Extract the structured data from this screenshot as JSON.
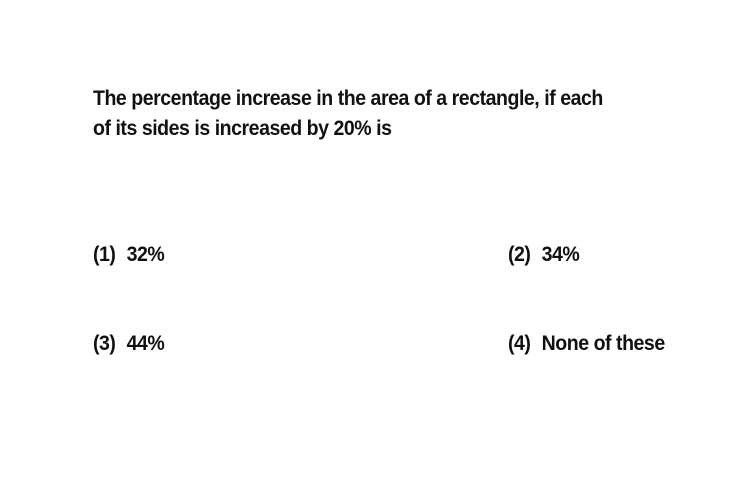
{
  "question": {
    "line1": "The percentage increase in the area of a rectangle, if each",
    "line2": "of its sides is increased by 20% is"
  },
  "options": [
    {
      "number": "(1)",
      "text": "32%"
    },
    {
      "number": "(2)",
      "text": "34%"
    },
    {
      "number": "(3)",
      "text": "44%"
    },
    {
      "number": "(4)",
      "text": "None of these"
    }
  ]
}
